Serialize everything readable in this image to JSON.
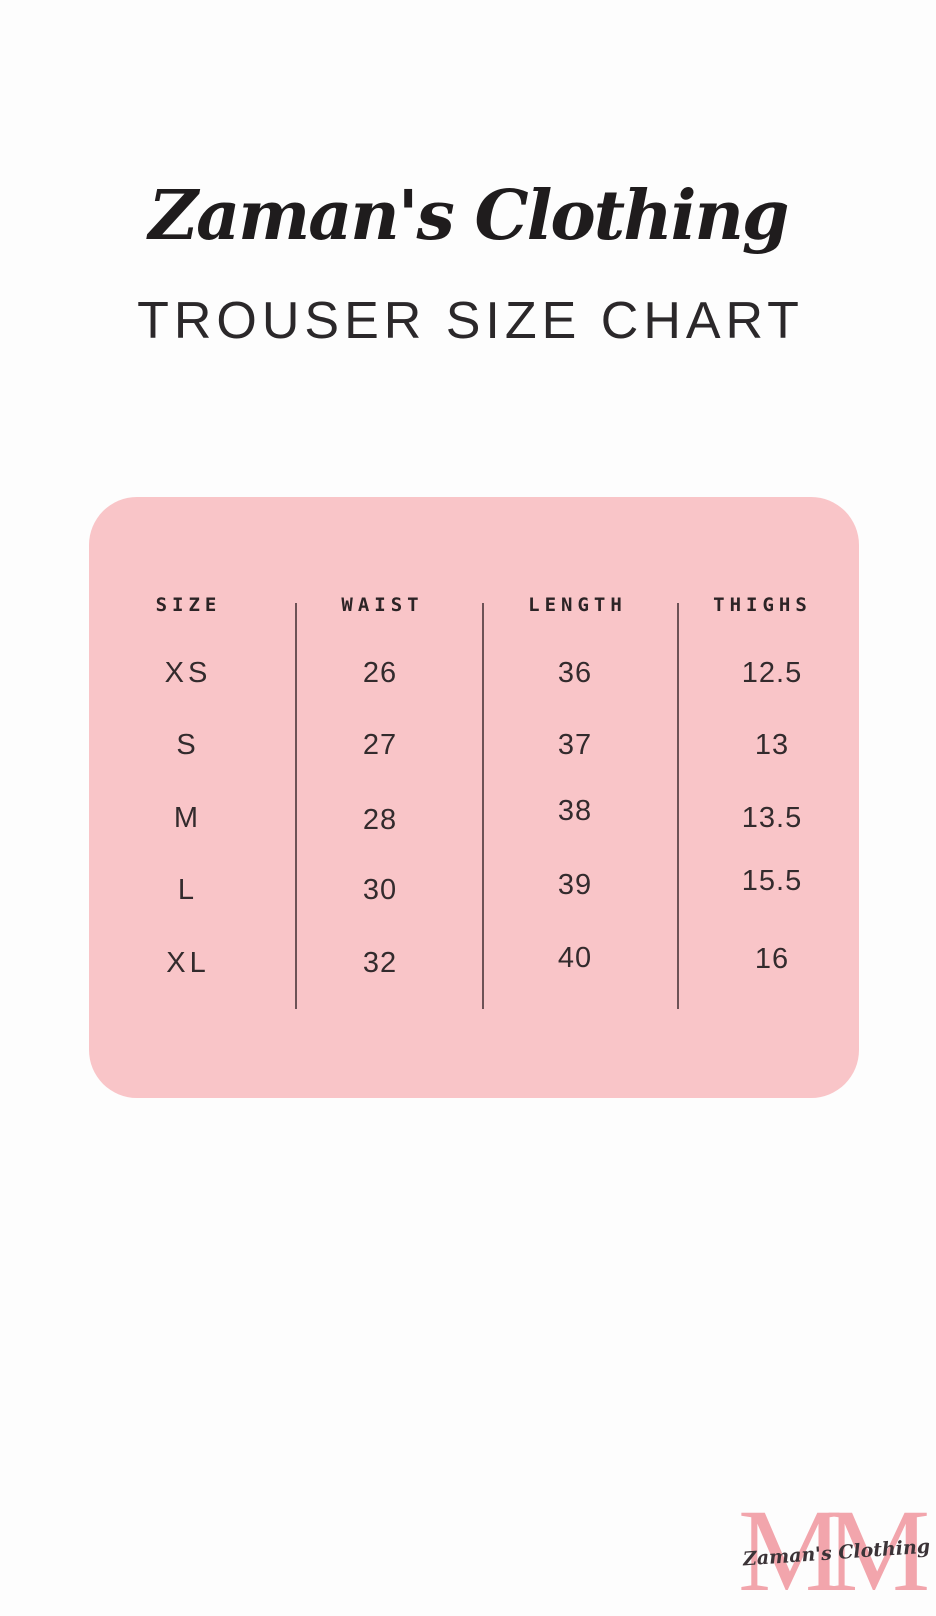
{
  "header": {
    "brand_script": "Zaman's Clothing",
    "title": "TROUSER SIZE CHART"
  },
  "chart_data": {
    "type": "table",
    "title": "TROUSER SIZE CHART",
    "columns": [
      "SIZE",
      "WAIST",
      "LENGTH",
      "THIGHS"
    ],
    "rows": [
      [
        "XS",
        "26",
        "36",
        "12.5"
      ],
      [
        "S",
        "27",
        "37",
        "13"
      ],
      [
        "M",
        "28",
        "38",
        "13.5"
      ],
      [
        "L",
        "30",
        "39",
        "15.5"
      ],
      [
        "XL",
        "32",
        "40",
        "16"
      ]
    ]
  },
  "footer_logo": {
    "monogram": "MM",
    "brand_script": "Zaman's Clothing"
  },
  "colors": {
    "background": "#fdfdfd",
    "card_pink": "#f9c5c8",
    "monogram_pink": "#f2a5ac",
    "ink": "#2c2426",
    "divider": "#4a3439"
  }
}
